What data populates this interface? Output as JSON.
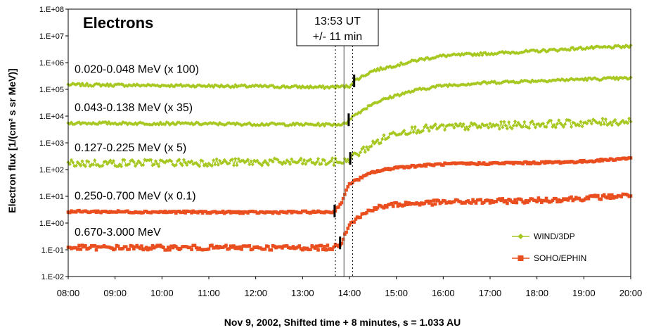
{
  "chart_data": {
    "type": "scatter",
    "title": "Electrons",
    "xlabel": "Nov 9, 2002, Shifted time + 8 minutes, s = 1.033 AU",
    "ylabel": "Electron flux [1/(cm² s sr MeV)]",
    "yscale": "log",
    "ylim": [
      0.01,
      100000000
    ],
    "xlim": [
      "08:00",
      "20:00"
    ],
    "x_ticks": [
      "08:00",
      "09:00",
      "10:00",
      "11:00",
      "12:00",
      "13:00",
      "14:00",
      "15:00",
      "16:00",
      "17:00",
      "18:00",
      "19:00",
      "20:00"
    ],
    "y_ticks": [
      "1.E-02",
      "1.E-01",
      "1.E+00",
      "1.E+01",
      "1.E+02",
      "1.E+03",
      "1.E+04",
      "1.E+05",
      "1.E+06",
      "1.E+07",
      "1.E+08"
    ],
    "annotation": {
      "line1": "13:53 UT",
      "line2": "+/- 11 min"
    },
    "marker_times": {
      "center": "13:53",
      "lower": "13:42",
      "upper": "14:04"
    },
    "legend": [
      {
        "name": "WIND/3DP",
        "color": "#a6c820",
        "marker": "diamond"
      },
      {
        "name": "SOHO/EPHIN",
        "color": "#ea4e1e",
        "marker": "square"
      }
    ],
    "series": [
      {
        "label": "0.020-0.048 MeV (x 100)",
        "instrument": "WIND/3DP",
        "color": "#a6c820",
        "noise": 0.05,
        "onset_tick": "14:06",
        "points": [
          [
            "08:00",
            150000
          ],
          [
            "10:00",
            140000
          ],
          [
            "12:00",
            130000
          ],
          [
            "13:30",
            120000
          ],
          [
            "14:00",
            130000
          ],
          [
            "14:05",
            200000
          ],
          [
            "14:30",
            500000
          ],
          [
            "15:00",
            800000
          ],
          [
            "15:30",
            1300000
          ],
          [
            "16:00",
            1800000
          ],
          [
            "17:00",
            2200000
          ],
          [
            "18:00",
            2700000
          ],
          [
            "19:00",
            3500000
          ],
          [
            "20:00",
            4000000
          ]
        ]
      },
      {
        "label": "0.043-0.138 MeV (x 35)",
        "instrument": "WIND/3DP",
        "color": "#a6c820",
        "noise": 0.05,
        "onset_tick": "13:59",
        "points": [
          [
            "08:00",
            5500
          ],
          [
            "10:00",
            5300
          ],
          [
            "12:00",
            5000
          ],
          [
            "13:30",
            4800
          ],
          [
            "13:55",
            5000
          ],
          [
            "14:00",
            8000
          ],
          [
            "14:30",
            30000
          ],
          [
            "15:00",
            60000
          ],
          [
            "15:30",
            100000
          ],
          [
            "16:00",
            140000
          ],
          [
            "17:00",
            180000
          ],
          [
            "18:00",
            210000
          ],
          [
            "19:00",
            240000
          ],
          [
            "20:00",
            260000
          ]
        ]
      },
      {
        "label": "0.127-0.225 MeV (x 5)",
        "instrument": "WIND/3DP",
        "color": "#a6c820",
        "noise": 0.14,
        "onset_tick": "14:01",
        "points": [
          [
            "08:00",
            170
          ],
          [
            "10:00",
            180
          ],
          [
            "12:00",
            190
          ],
          [
            "13:30",
            190
          ],
          [
            "13:55",
            200
          ],
          [
            "14:00",
            250
          ],
          [
            "14:30",
            900
          ],
          [
            "15:00",
            2500
          ],
          [
            "15:30",
            3300
          ],
          [
            "16:00",
            3800
          ],
          [
            "17:00",
            4300
          ],
          [
            "18:00",
            5000
          ],
          [
            "19:00",
            5500
          ],
          [
            "20:00",
            6500
          ]
        ]
      },
      {
        "label": "0.250-0.700 MeV (x 0.1)",
        "instrument": "SOHO/EPHIN",
        "color": "#ea4e1e",
        "noise": 0.04,
        "onset_tick": "13:41",
        "points": [
          [
            "08:00",
            2.7
          ],
          [
            "10:00",
            2.6
          ],
          [
            "12:00",
            2.5
          ],
          [
            "13:40",
            2.6
          ],
          [
            "13:50",
            6
          ],
          [
            "14:00",
            30
          ],
          [
            "14:30",
            80
          ],
          [
            "15:00",
            120
          ],
          [
            "15:30",
            140
          ],
          [
            "16:00",
            160
          ],
          [
            "17:00",
            170
          ],
          [
            "18:00",
            180
          ],
          [
            "19:00",
            200
          ],
          [
            "20:00",
            270
          ]
        ]
      },
      {
        "label": "0.670-3.000 MeV",
        "instrument": "SOHO/EPHIN",
        "color": "#ea4e1e",
        "noise": 0.09,
        "onset_tick": "13:48",
        "points": [
          [
            "08:00",
            0.12
          ],
          [
            "10:00",
            0.12
          ],
          [
            "12:00",
            0.12
          ],
          [
            "13:40",
            0.12
          ],
          [
            "13:50",
            0.2
          ],
          [
            "14:00",
            1.0
          ],
          [
            "14:30",
            3.5
          ],
          [
            "15:00",
            5
          ],
          [
            "15:30",
            5.5
          ],
          [
            "16:00",
            6
          ],
          [
            "17:00",
            6.5
          ],
          [
            "18:00",
            7
          ],
          [
            "19:00",
            8.5
          ],
          [
            "20:00",
            11
          ]
        ]
      }
    ]
  }
}
